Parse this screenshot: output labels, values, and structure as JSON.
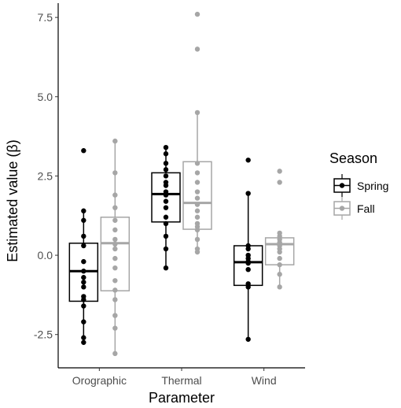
{
  "chart_data": {
    "type": "boxplot",
    "xlabel": "Parameter",
    "ylabel": "Estimated value (β)",
    "categories": [
      "Orographic",
      "Thermal",
      "Wind"
    ],
    "ylim": [
      -3.55,
      7.95
    ],
    "yticks": [
      -2.5,
      0.0,
      2.5,
      5.0,
      7.5
    ],
    "ytick_labels": [
      "-2.5",
      "0.0",
      "2.5",
      "5.0",
      "7.5"
    ],
    "grid": false,
    "legend": {
      "title": "Season",
      "position": "right"
    },
    "series": [
      {
        "name": "Spring",
        "color": "#000000",
        "boxes": [
          {
            "category": "Orographic",
            "min": -2.75,
            "q1": -1.45,
            "median": -0.5,
            "q3": 0.38,
            "max": 1.4,
            "points": [
              3.3,
              1.4,
              1.1,
              0.6,
              0.3,
              -0.2,
              -0.5,
              -0.7,
              -0.85,
              -1.0,
              -1.3,
              -1.4,
              -1.6,
              -2.1,
              -2.6,
              -2.75
            ]
          },
          {
            "category": "Thermal",
            "min": -0.4,
            "q1": 1.05,
            "median": 1.93,
            "q3": 2.6,
            "max": 3.4,
            "points": [
              3.4,
              3.2,
              2.9,
              2.7,
              2.5,
              2.3,
              2.2,
              2.0,
              1.9,
              1.7,
              1.5,
              1.2,
              1.0,
              0.6,
              0.2,
              -0.4
            ]
          },
          {
            "category": "Wind",
            "min": -2.65,
            "q1": -0.95,
            "median": -0.22,
            "q3": 0.3,
            "max": 1.95,
            "points": [
              3.0,
              1.95,
              0.3,
              0.2,
              0.0,
              -0.1,
              -0.2,
              -0.25,
              -0.45,
              -0.9,
              -1.0,
              -2.65
            ]
          }
        ]
      },
      {
        "name": "Fall",
        "color": "#a6a6a6",
        "boxes": [
          {
            "category": "Orographic",
            "min": -3.1,
            "q1": -1.12,
            "median": 0.38,
            "q3": 1.2,
            "max": 3.6,
            "points": [
              3.6,
              2.6,
              1.9,
              1.5,
              1.1,
              0.8,
              0.5,
              0.35,
              0.2,
              -0.1,
              -0.4,
              -0.8,
              -1.1,
              -1.4,
              -1.9,
              -2.3,
              -3.1
            ]
          },
          {
            "category": "Thermal",
            "min": 0.1,
            "q1": 0.82,
            "median": 1.65,
            "q3": 2.95,
            "max": 4.5,
            "points": [
              7.6,
              6.5,
              4.5,
              2.9,
              2.6,
              2.3,
              2.0,
              1.8,
              1.6,
              1.4,
              1.2,
              1.0,
              0.9,
              0.8,
              0.5,
              0.2,
              0.1
            ]
          },
          {
            "category": "Wind",
            "min": -1.0,
            "q1": -0.3,
            "median": 0.35,
            "q3": 0.55,
            "max": 0.7,
            "points": [
              2.65,
              2.3,
              0.7,
              0.6,
              0.5,
              0.4,
              0.3,
              0.2,
              0.1,
              -0.1,
              -0.3,
              -0.6,
              -1.0
            ]
          }
        ]
      }
    ]
  }
}
